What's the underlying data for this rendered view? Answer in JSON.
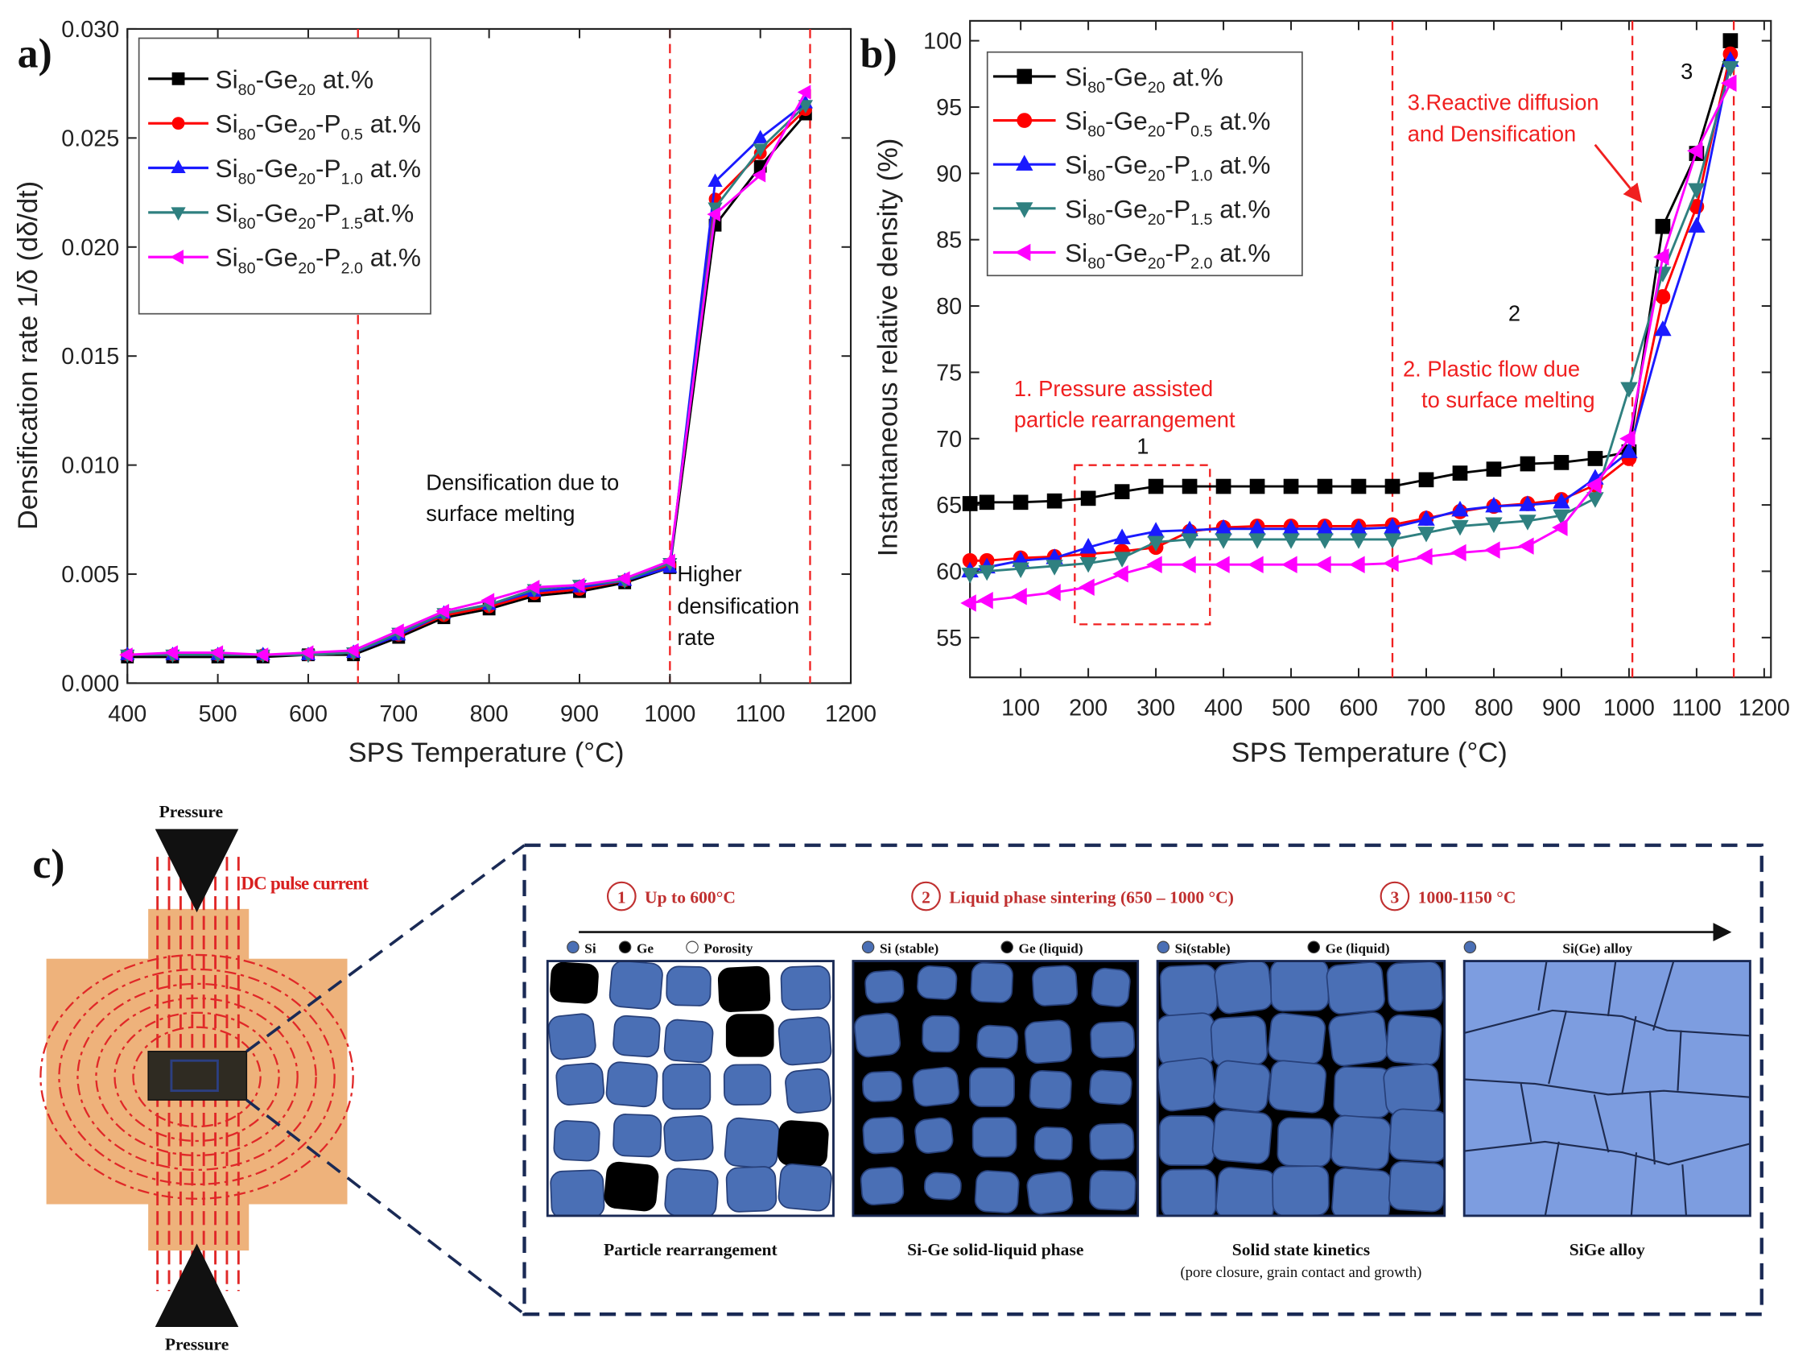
{
  "chart_data": [
    {
      "type": "line",
      "title": "a)",
      "xlabel": "SPS Temperature (°C)",
      "ylabel": "Densification rate 1/δ (dδ/dt)",
      "x": [
        400,
        450,
        500,
        550,
        600,
        650,
        700,
        750,
        800,
        850,
        900,
        950,
        1000,
        1050,
        1100,
        1150
      ],
      "xlim": [
        400,
        1200
      ],
      "xticks": [
        400,
        500,
        600,
        700,
        800,
        900,
        1000,
        1100,
        1200
      ],
      "ylim": [
        0,
        0.03
      ],
      "yticks": [
        {
          "value": 0,
          "label": "0.000"
        },
        {
          "value": 0.005,
          "label": "0.005"
        },
        {
          "value": 0.01,
          "label": "0.010"
        },
        {
          "value": 0.015,
          "label": "0.015"
        },
        {
          "value": 0.02,
          "label": "0.020"
        },
        {
          "value": 0.025,
          "label": "0.025"
        },
        {
          "value": 0.03,
          "label": "0.030"
        }
      ],
      "legend": "upper left",
      "vlines": [
        655,
        1000,
        1155
      ],
      "annotations": [
        {
          "text": "Densification due to",
          "color": "#111"
        },
        {
          "text": "surface melting",
          "color": "#111"
        },
        {
          "text": "Higher",
          "color": "#111"
        },
        {
          "text": "densification",
          "color": "#111"
        },
        {
          "text": "rate",
          "color": "#111"
        }
      ],
      "series": [
        {
          "name": "Si80-Ge20 at.%",
          "color": "#000000",
          "marker": "square",
          "values": [
            0.0012,
            0.0012,
            0.0012,
            0.0012,
            0.0013,
            0.0013,
            0.0021,
            0.003,
            0.0034,
            0.004,
            0.0042,
            0.0046,
            0.0053,
            0.021,
            0.0237,
            0.0261
          ]
        },
        {
          "name": "Si80-Ge20-P0.5 at.%",
          "color": "#ff0000",
          "marker": "circle",
          "values": [
            0.0013,
            0.0013,
            0.0013,
            0.0013,
            0.0013,
            0.0014,
            0.0022,
            0.0031,
            0.0035,
            0.0041,
            0.0043,
            0.0047,
            0.0054,
            0.0222,
            0.0243,
            0.0263
          ]
        },
        {
          "name": "Si80-Ge20-P1.0 at.%",
          "color": "#1a1aff",
          "marker": "up",
          "values": [
            0.0013,
            0.0013,
            0.0013,
            0.0013,
            0.0013,
            0.0014,
            0.0022,
            0.0032,
            0.0036,
            0.0042,
            0.0044,
            0.0047,
            0.0053,
            0.023,
            0.025,
            0.0266
          ]
        },
        {
          "name": "Si80-Ge20-P1.5at.%",
          "color": "#2f8080",
          "marker": "down",
          "values": [
            0.0013,
            0.0013,
            0.0013,
            0.0013,
            0.0013,
            0.0014,
            0.0023,
            0.0032,
            0.0036,
            0.0043,
            0.0045,
            0.0047,
            0.0055,
            0.0218,
            0.0245,
            0.0265
          ]
        },
        {
          "name": "Si80-Ge20-P2.0 at.%",
          "color": "#ff00ff",
          "marker": "left",
          "values": [
            0.0013,
            0.0014,
            0.0014,
            0.0013,
            0.0014,
            0.0015,
            0.0024,
            0.0033,
            0.0038,
            0.0044,
            0.0045,
            0.0048,
            0.0056,
            0.0215,
            0.0233,
            0.0271
          ]
        }
      ]
    },
    {
      "type": "line",
      "title": "b)",
      "xlabel": "SPS Temperature (°C)",
      "ylabel": "Instantaneous relative density (%)",
      "x": [
        25,
        50,
        100,
        150,
        200,
        250,
        300,
        350,
        400,
        450,
        500,
        550,
        600,
        650,
        700,
        750,
        800,
        850,
        900,
        950,
        1000,
        1050,
        1100,
        1150
      ],
      "xlim": [
        25,
        1210
      ],
      "xticks": [
        100,
        200,
        300,
        400,
        500,
        600,
        700,
        800,
        900,
        1000,
        1100,
        1200
      ],
      "ylim": [
        52,
        101.5
      ],
      "yticks": [
        55,
        60,
        65,
        70,
        75,
        80,
        85,
        90,
        95,
        100
      ],
      "legend": "upper left",
      "vlines": [
        650,
        1005,
        1155
      ],
      "highlight": {
        "x": [
          180,
          380
        ],
        "y": [
          56,
          68
        ]
      },
      "annotations": [
        {
          "text": "1. Pressure assisted",
          "color": "#f02020"
        },
        {
          "text": "particle rearrangement",
          "color": "#f02020"
        },
        {
          "text": "2. Plastic flow due",
          "color": "#f02020"
        },
        {
          "text": "to surface melting",
          "color": "#f02020"
        },
        {
          "text": "3.Reactive diffusion",
          "color": "#f02020"
        },
        {
          "text": "and Densification",
          "color": "#f02020"
        },
        {
          "text": "1",
          "color": "#111"
        },
        {
          "text": "2",
          "color": "#111"
        },
        {
          "text": "3",
          "color": "#111"
        }
      ],
      "series": [
        {
          "name": "Si80-Ge20 at.%",
          "color": "#000000",
          "marker": "square",
          "values": [
            65.1,
            65.2,
            65.2,
            65.3,
            65.5,
            66.0,
            66.4,
            66.4,
            66.4,
            66.4,
            66.4,
            66.4,
            66.4,
            66.4,
            66.9,
            67.4,
            67.7,
            68.1,
            68.2,
            68.5,
            69.0,
            86.0,
            91.5,
            100
          ]
        },
        {
          "name": "Si80-Ge20-P0.5 at.%",
          "color": "#ff0000",
          "marker": "circle",
          "values": [
            60.8,
            60.8,
            61.0,
            61.1,
            61.3,
            61.5,
            61.8,
            63.0,
            63.3,
            63.4,
            63.4,
            63.4,
            63.4,
            63.5,
            64.0,
            64.5,
            64.9,
            65.1,
            65.4,
            66.5,
            68.5,
            80.7,
            87.5,
            99
          ]
        },
        {
          "name": "Si80-Ge20-P1.0 at.%",
          "color": "#1a1aff",
          "marker": "up",
          "values": [
            60.0,
            60.3,
            60.8,
            61.0,
            61.8,
            62.5,
            63.0,
            63.1,
            63.2,
            63.2,
            63.2,
            63.2,
            63.2,
            63.3,
            63.9,
            64.6,
            64.9,
            65.0,
            65.2,
            67.0,
            69.0,
            78.2,
            86.0,
            98.5
          ]
        },
        {
          "name": "Si80-Ge20-P1.5 at.%",
          "color": "#2f8080",
          "marker": "down",
          "values": [
            59.8,
            60.0,
            60.2,
            60.4,
            60.6,
            61.0,
            62.2,
            62.4,
            62.4,
            62.4,
            62.4,
            62.4,
            62.4,
            62.4,
            62.9,
            63.4,
            63.6,
            63.8,
            64.2,
            65.5,
            73.8,
            82.5,
            88.8,
            98
          ]
        },
        {
          "name": "Si80-Ge20-P2.0 at.%",
          "color": "#ff00ff",
          "marker": "left",
          "values": [
            57.6,
            57.8,
            58.1,
            58.4,
            58.8,
            59.8,
            60.5,
            60.5,
            60.5,
            60.5,
            60.5,
            60.5,
            60.5,
            60.6,
            61.1,
            61.4,
            61.6,
            61.9,
            63.3,
            66.5,
            70.0,
            83.7,
            91.7,
            96.8
          ]
        }
      ]
    }
  ],
  "diagram": {
    "label": "c)",
    "pressure_top": "Pressure",
    "pressure_bottom": "Pressure",
    "current": "DC pulse current",
    "stages": [
      {
        "number": "1",
        "text": "Up to 600°C"
      },
      {
        "number": "2",
        "text": "Liquid phase sintering (650 – 1000 °C)"
      },
      {
        "number": "3",
        "text": "1000-1150 °C"
      }
    ],
    "panels": [
      {
        "legend": [
          {
            "text": "Si",
            "color": "#4a6fb5"
          },
          {
            "text": "Ge",
            "color": "#000000"
          },
          {
            "text": "Porosity",
            "color": "#ffffff"
          }
        ],
        "caption": [
          "Particle rearrangement"
        ]
      },
      {
        "legend": [
          {
            "text": "Si (stable)",
            "color": "#4a6fb5"
          },
          {
            "text": "Ge (liquid)",
            "color": "#000000"
          }
        ],
        "caption": [
          "Si-Ge solid-liquid  phase"
        ]
      },
      {
        "legend": [
          {
            "text": "Si(stable)",
            "color": "#4a6fb5"
          },
          {
            "text": "Ge (liquid)",
            "color": "#000000"
          }
        ],
        "caption": [
          "Solid state kinetics",
          "(pore closure, grain contact and growth)"
        ]
      },
      {
        "legend": [
          {
            "text": "Si(Ge) alloy",
            "color": "#4a6fb5"
          }
        ],
        "caption": [
          "SiGe alloy"
        ]
      }
    ]
  }
}
